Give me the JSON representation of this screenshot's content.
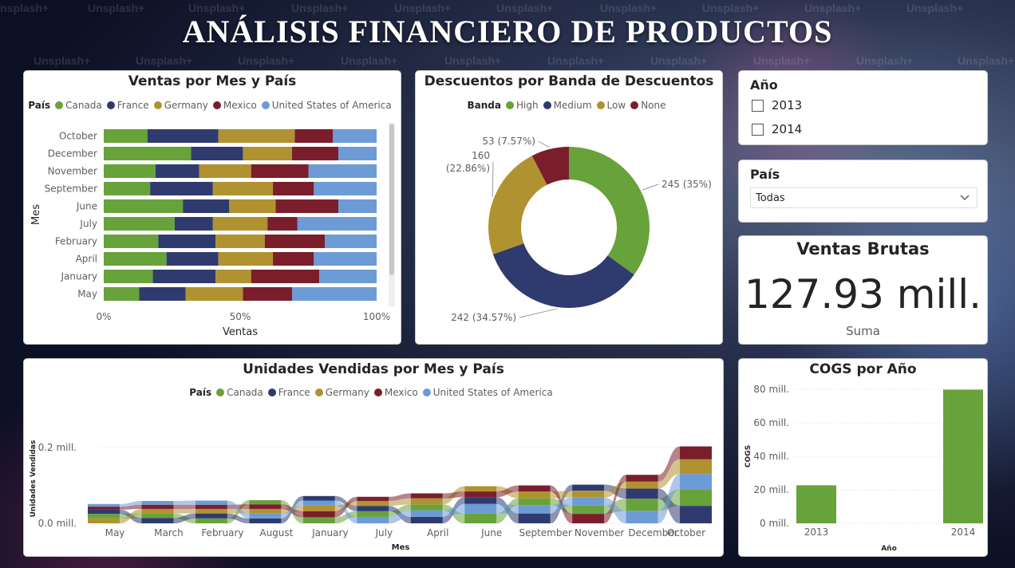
{
  "page": {
    "title": "ANÁLISIS FINANCIERO DE PRODUCTOS",
    "watermark": "Unsplash+"
  },
  "colors": {
    "Canada": "#68a23b",
    "France": "#2f3b6f",
    "Germany": "#b09230",
    "Mexico": "#7b1e2c",
    "United States of America": "#6d9bd5"
  },
  "ventas_mes_pais": {
    "title": "Ventas por Mes y País",
    "legend_label": "País",
    "countries": [
      "Canada",
      "France",
      "Germany",
      "Mexico",
      "United States of America"
    ],
    "ylabel": "Mes",
    "xlabel": "Ventas",
    "xticks": [
      "0%",
      "50%",
      "100%"
    ],
    "chart_data": {
      "type": "bar",
      "orientation": "horizontal",
      "stacked": "100%",
      "categories": [
        "October",
        "December",
        "November",
        "September",
        "June",
        "July",
        "February",
        "April",
        "January",
        "May"
      ],
      "series": [
        {
          "name": "Canada",
          "values": [
            16,
            32,
            19,
            17,
            29,
            26,
            20,
            23,
            18,
            13
          ]
        },
        {
          "name": "France",
          "values": [
            26,
            19,
            16,
            23,
            17,
            14,
            21,
            19,
            23,
            17
          ]
        },
        {
          "name": "Germany",
          "values": [
            28,
            18,
            19,
            22,
            17,
            20,
            18,
            20,
            13,
            21
          ]
        },
        {
          "name": "Mexico",
          "values": [
            14,
            17,
            21,
            15,
            23,
            11,
            22,
            15,
            25,
            18
          ]
        },
        {
          "name": "United States of America",
          "values": [
            16,
            14,
            25,
            23,
            14,
            29,
            19,
            23,
            21,
            31
          ]
        }
      ],
      "xlim": [
        0,
        100
      ],
      "xlabel": "Ventas",
      "ylabel": "Mes"
    }
  },
  "descuentos": {
    "title": "Descuentos por Banda de Descuentos",
    "legend_label": "Banda",
    "chart_data": {
      "type": "pie",
      "donut": true,
      "labels": [
        "High",
        "Medium",
        "Low",
        "None"
      ],
      "values": [
        245,
        242,
        160,
        53
      ],
      "data_labels": [
        "245 (35%)",
        "242 (34.57%)",
        "160 (22.86%)",
        "53 (7.57%)"
      ],
      "colors": [
        "#68a23b",
        "#2f3b6f",
        "#b09230",
        "#7b1e2c"
      ]
    }
  },
  "anio_filter": {
    "title": "Año",
    "options": [
      "2013",
      "2014"
    ]
  },
  "pais_filter": {
    "title": "País",
    "value": "Todas"
  },
  "kpi": {
    "title": "Ventas Brutas",
    "value": "127.93 mill.",
    "caption": "Suma"
  },
  "unidades": {
    "title": "Unidades Vendidas por Mes y País",
    "legend_label": "País",
    "ylabel": "Unidades Vendidas",
    "xlabel": "Mes",
    "yticks": [
      "0.2 mill.",
      "0.0 mill."
    ],
    "chart_data": {
      "type": "bar",
      "subtype": "ribbon",
      "categories": [
        "May",
        "March",
        "February",
        "August",
        "January",
        "July",
        "April",
        "June",
        "September",
        "November",
        "December",
        "October"
      ],
      "series": [
        {
          "name": "Canada",
          "values": [
            0.012,
            0.012,
            0.013,
            0.011,
            0.016,
            0.015,
            0.016,
            0.026,
            0.018,
            0.022,
            0.032,
            0.044
          ]
        },
        {
          "name": "France",
          "values": [
            0.011,
            0.014,
            0.013,
            0.013,
            0.012,
            0.014,
            0.017,
            0.018,
            0.026,
            0.016,
            0.027,
            0.046
          ]
        },
        {
          "name": "Germany",
          "values": [
            0.013,
            0.012,
            0.012,
            0.012,
            0.015,
            0.013,
            0.016,
            0.014,
            0.018,
            0.018,
            0.018,
            0.039
          ]
        },
        {
          "name": "Mexico",
          "values": [
            0.008,
            0.011,
            0.011,
            0.012,
            0.016,
            0.011,
            0.013,
            0.015,
            0.016,
            0.025,
            0.018,
            0.034
          ]
        },
        {
          "name": "United States of America",
          "values": [
            0.007,
            0.01,
            0.011,
            0.013,
            0.013,
            0.017,
            0.017,
            0.025,
            0.022,
            0.021,
            0.033,
            0.04
          ]
        }
      ],
      "ylim": [
        0,
        0.2
      ]
    }
  },
  "cogs": {
    "title": "COGS por Año",
    "ylabel": "COGS",
    "xlabel": "Año",
    "yticks": [
      "80 mill.",
      "60 mill.",
      "40 mill.",
      "20 mill.",
      "0 mill."
    ],
    "chart_data": {
      "type": "bar",
      "categories": [
        "2013",
        "2014"
      ],
      "values": [
        22.7,
        79.8
      ],
      "ylim": [
        0,
        80
      ],
      "ylabel": "COGS",
      "xlabel": "Año",
      "color": "#68a23b"
    }
  }
}
